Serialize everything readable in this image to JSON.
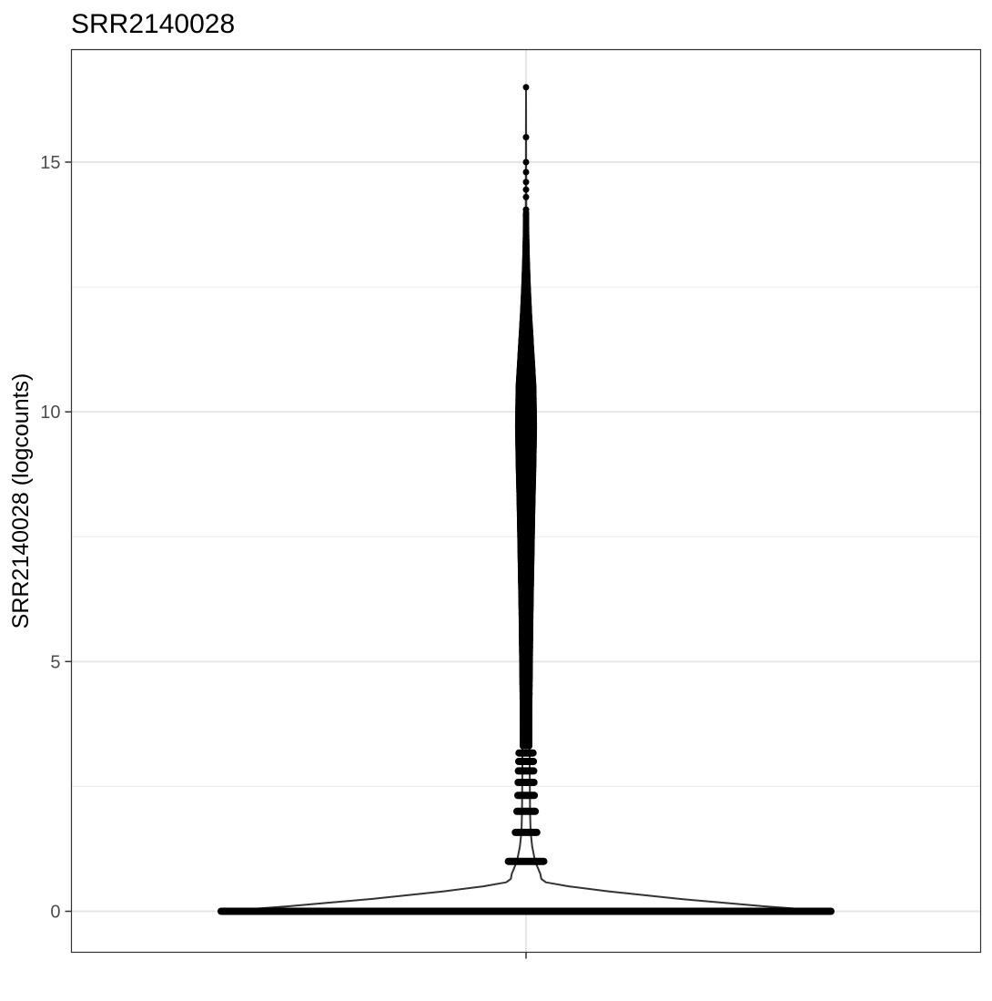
{
  "chart_data": {
    "type": "violin",
    "title": "SRR2140028",
    "xlabel": "",
    "ylabel": "SRR2140028 (logcounts)",
    "ylim": [
      -0.8,
      16.9
    ],
    "y_ticks": [
      0,
      5,
      10,
      15
    ],
    "y_tick_labels": [
      "0",
      "5",
      "10",
      "15"
    ],
    "y_minor_ticks": [
      2.5,
      7.5,
      12.5
    ],
    "categories": [
      ""
    ],
    "grid": true,
    "legend": "none",
    "violin_profile": [
      {
        "y": 0.0,
        "density": 1.0
      },
      {
        "y": 0.1,
        "density": 0.78
      },
      {
        "y": 0.25,
        "density": 0.5
      },
      {
        "y": 0.4,
        "density": 0.27
      },
      {
        "y": 0.5,
        "density": 0.14
      },
      {
        "y": 0.58,
        "density": 0.065
      },
      {
        "y": 0.65,
        "density": 0.05
      },
      {
        "y": 0.75,
        "density": 0.047
      },
      {
        "y": 1.0,
        "density": 0.03
      },
      {
        "y": 1.3,
        "density": 0.02
      },
      {
        "y": 1.6,
        "density": 0.015
      },
      {
        "y": 2.0,
        "density": 0.013
      },
      {
        "y": 3.0,
        "density": 0.012
      },
      {
        "y": 4.0,
        "density": 0.012
      },
      {
        "y": 5.0,
        "density": 0.014
      },
      {
        "y": 6.0,
        "density": 0.016
      },
      {
        "y": 7.0,
        "density": 0.019
      },
      {
        "y": 8.0,
        "density": 0.022
      },
      {
        "y": 9.0,
        "density": 0.026
      },
      {
        "y": 9.7,
        "density": 0.028
      },
      {
        "y": 10.5,
        "density": 0.026
      },
      {
        "y": 11.0,
        "density": 0.021
      },
      {
        "y": 11.5,
        "density": 0.016
      },
      {
        "y": 12.0,
        "density": 0.011
      },
      {
        "y": 12.5,
        "density": 0.007
      },
      {
        "y": 13.0,
        "density": 0.004
      },
      {
        "y": 13.5,
        "density": 0.002
      },
      {
        "y": 14.0,
        "density": 0.001
      },
      {
        "y": 16.5,
        "density": 0.0
      }
    ],
    "discrete_value_bands": [
      {
        "y": 0.0,
        "halfwidth": 1.0
      },
      {
        "y": 1.0,
        "halfwidth": 0.058
      },
      {
        "y": 1.58,
        "halfwidth": 0.035
      },
      {
        "y": 2.0,
        "halfwidth": 0.03
      },
      {
        "y": 2.32,
        "halfwidth": 0.027
      },
      {
        "y": 2.58,
        "halfwidth": 0.026
      },
      {
        "y": 2.81,
        "halfwidth": 0.025
      },
      {
        "y": 3.0,
        "halfwidth": 0.024
      },
      {
        "y": 3.17,
        "halfwidth": 0.023
      }
    ],
    "outlier_points": [
      16.5,
      15.5,
      15.0,
      14.8,
      14.6,
      14.45,
      14.3,
      14.05,
      13.95
    ]
  }
}
